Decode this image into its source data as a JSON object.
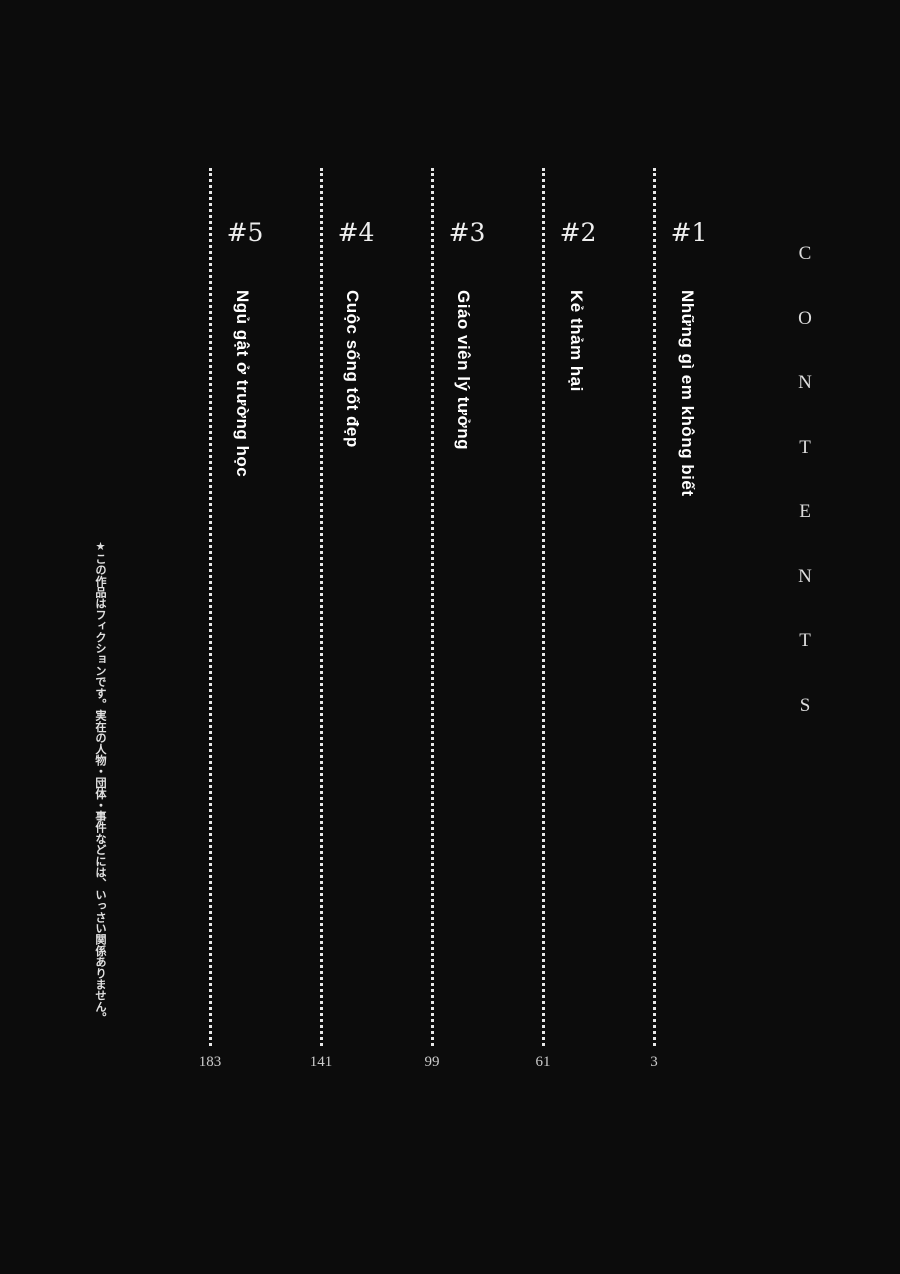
{
  "heading": "CONTENTS",
  "chapters": [
    {
      "number": "#1",
      "title": "Những gì em không biết",
      "page": "3"
    },
    {
      "number": "#2",
      "title": "Kẻ thảm hại",
      "page": "61"
    },
    {
      "number": "#3",
      "title": "Giáo viên lý tưởng",
      "page": "99"
    },
    {
      "number": "#4",
      "title": "Cuộc sống tốt đẹp",
      "page": "141"
    },
    {
      "number": "#5",
      "title": "Ngủ gật ở trường học",
      "page": "183"
    }
  ],
  "note": "★この作品はフィクションです。実在の人物・団体・事件などには、いっさい関係ありません。"
}
